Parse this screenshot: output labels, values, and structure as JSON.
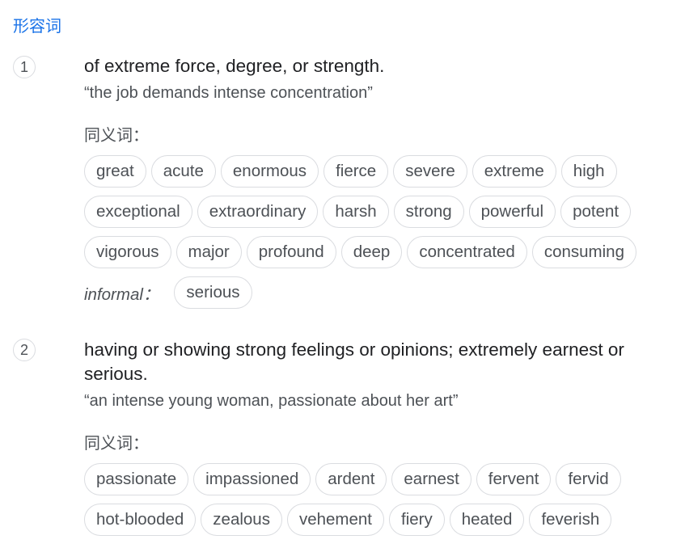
{
  "part_of_speech": "形容词",
  "senses": [
    {
      "number": "1",
      "definition": "of extreme force, degree, or strength.",
      "example": "“the job demands intense concentration”",
      "synonyms_label": "同义词：",
      "synonym_rows": [
        [
          "great",
          "acute",
          "enormous",
          "fierce",
          "severe",
          "extreme",
          "high"
        ],
        [
          "exceptional",
          "extraordinary",
          "harsh",
          "strong",
          "powerful",
          "potent"
        ],
        [
          "vigorous",
          "major",
          "profound",
          "deep",
          "concentrated",
          "consuming"
        ]
      ],
      "informal_label": "informal：",
      "informal_synonyms": [
        "serious"
      ]
    },
    {
      "number": "2",
      "definition": "having or showing strong feelings or opinions; extremely earnest or serious.",
      "example": "“an intense young woman, passionate about her art”",
      "synonyms_label": "同义词：",
      "synonym_rows": [
        [
          "passionate",
          "impassioned",
          "ardent",
          "earnest",
          "fervent",
          "fervid"
        ],
        [
          "hot-blooded",
          "zealous",
          "vehement",
          "fiery",
          "heated",
          "feverish"
        ]
      ]
    }
  ]
}
